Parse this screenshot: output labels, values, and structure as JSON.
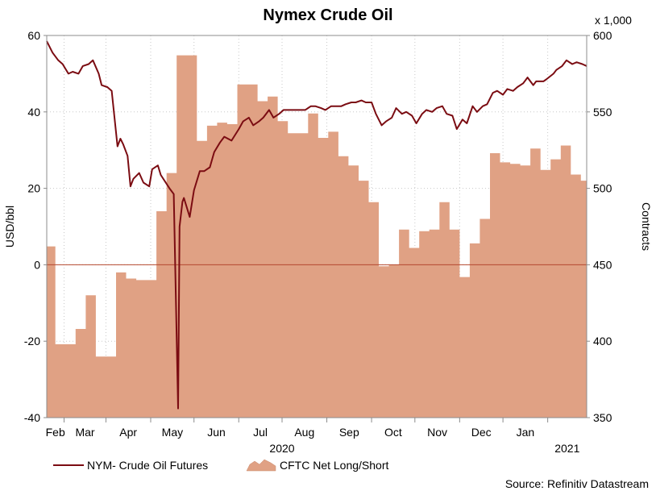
{
  "chart_data": {
    "type": "line+area",
    "title": "Nymex Crude Oil",
    "source": "Source: Refinitiv Datastream",
    "left_axis": {
      "label": "USD/bbl",
      "range": [
        -40,
        60
      ],
      "ticks": [
        "60",
        "40",
        "20",
        "0",
        "-20",
        "-40"
      ],
      "tick_values": [
        60,
        40,
        20,
        0,
        -20,
        -40
      ]
    },
    "right_axis": {
      "label": "Contracts",
      "multiplier": "x 1,000",
      "range": [
        350,
        600
      ],
      "ticks": [
        "600",
        "550",
        "500",
        "450",
        "400",
        "350"
      ],
      "tick_values": [
        600,
        550,
        500,
        450,
        400,
        350
      ]
    },
    "x_axis": {
      "month_labels": [
        "Feb",
        "Mar",
        "Apr",
        "May",
        "Jun",
        "Jul",
        "Aug",
        "Sep",
        "Oct",
        "Nov",
        "Dec",
        "Jan"
      ],
      "year_labels": [
        "2020",
        "2021"
      ],
      "range": [
        "2020-01-20",
        "2021-01-28"
      ]
    },
    "grid": true,
    "legend": {
      "position": "bottom-left",
      "items": [
        "NYM- Crude Oil Futures",
        "CFTC Net Long/Short"
      ]
    },
    "colors": {
      "line": "#7b0c12",
      "area": "#e0a184",
      "zero_line": "#b5482f"
    },
    "series": [
      {
        "name": "NYM- Crude Oil Futures",
        "axis": "left",
        "unit": "USD/bbl",
        "points": [
          [
            "2020-01-20",
            58.5
          ],
          [
            "2020-01-24",
            55.5
          ],
          [
            "2020-01-28",
            53.5
          ],
          [
            "2020-01-31",
            52.5
          ],
          [
            "2020-02-04",
            50.0
          ],
          [
            "2020-02-07",
            50.5
          ],
          [
            "2020-02-11",
            50.0
          ],
          [
            "2020-02-14",
            52.0
          ],
          [
            "2020-02-18",
            52.5
          ],
          [
            "2020-02-21",
            53.5
          ],
          [
            "2020-02-25",
            50.0
          ],
          [
            "2020-02-27",
            47.0
          ],
          [
            "2020-03-02",
            46.5
          ],
          [
            "2020-03-05",
            45.5
          ],
          [
            "2020-03-09",
            31.0
          ],
          [
            "2020-03-11",
            33.0
          ],
          [
            "2020-03-13",
            31.5
          ],
          [
            "2020-03-16",
            28.5
          ],
          [
            "2020-03-18",
            20.5
          ],
          [
            "2020-03-20",
            22.5
          ],
          [
            "2020-03-24",
            24.0
          ],
          [
            "2020-03-27",
            21.5
          ],
          [
            "2020-03-31",
            20.5
          ],
          [
            "2020-04-02",
            25.0
          ],
          [
            "2020-04-06",
            26.0
          ],
          [
            "2020-04-08",
            23.5
          ],
          [
            "2020-04-14",
            20.0
          ],
          [
            "2020-04-17",
            18.5
          ],
          [
            "2020-04-20",
            -37.6
          ],
          [
            "2020-04-21",
            10.0
          ],
          [
            "2020-04-23",
            16.5
          ],
          [
            "2020-04-24",
            17.5
          ],
          [
            "2020-04-28",
            12.5
          ],
          [
            "2020-05-01",
            19.5
          ],
          [
            "2020-05-05",
            24.5
          ],
          [
            "2020-05-08",
            24.5
          ],
          [
            "2020-05-12",
            25.5
          ],
          [
            "2020-05-15",
            29.5
          ],
          [
            "2020-05-19",
            32.0
          ],
          [
            "2020-05-22",
            33.5
          ],
          [
            "2020-05-27",
            32.5
          ],
          [
            "2020-06-01",
            35.5
          ],
          [
            "2020-06-04",
            37.5
          ],
          [
            "2020-06-08",
            38.5
          ],
          [
            "2020-06-11",
            36.5
          ],
          [
            "2020-06-15",
            37.5
          ],
          [
            "2020-06-18",
            38.5
          ],
          [
            "2020-06-22",
            40.5
          ],
          [
            "2020-06-25",
            38.5
          ],
          [
            "2020-06-29",
            39.5
          ],
          [
            "2020-07-02",
            40.5
          ],
          [
            "2020-07-07",
            40.5
          ],
          [
            "2020-07-10",
            40.5
          ],
          [
            "2020-07-14",
            40.5
          ],
          [
            "2020-07-17",
            40.5
          ],
          [
            "2020-07-21",
            41.5
          ],
          [
            "2020-07-24",
            41.5
          ],
          [
            "2020-07-28",
            41.0
          ],
          [
            "2020-07-31",
            40.5
          ],
          [
            "2020-08-04",
            41.5
          ],
          [
            "2020-08-07",
            41.5
          ],
          [
            "2020-08-11",
            41.5
          ],
          [
            "2020-08-14",
            42.0
          ],
          [
            "2020-08-18",
            42.5
          ],
          [
            "2020-08-21",
            42.5
          ],
          [
            "2020-08-25",
            43.0
          ],
          [
            "2020-08-28",
            42.5
          ],
          [
            "2020-09-01",
            42.5
          ],
          [
            "2020-09-04",
            39.5
          ],
          [
            "2020-09-08",
            36.5
          ],
          [
            "2020-09-11",
            37.5
          ],
          [
            "2020-09-15",
            38.5
          ],
          [
            "2020-09-18",
            41.0
          ],
          [
            "2020-09-22",
            39.5
          ],
          [
            "2020-09-25",
            40.0
          ],
          [
            "2020-09-29",
            39.0
          ],
          [
            "2020-10-02",
            37.0
          ],
          [
            "2020-10-06",
            39.5
          ],
          [
            "2020-10-09",
            40.5
          ],
          [
            "2020-10-13",
            40.0
          ],
          [
            "2020-10-16",
            41.0
          ],
          [
            "2020-10-20",
            41.5
          ],
          [
            "2020-10-23",
            39.5
          ],
          [
            "2020-10-27",
            39.0
          ],
          [
            "2020-10-30",
            35.5
          ],
          [
            "2020-11-03",
            38.0
          ],
          [
            "2020-11-06",
            37.0
          ],
          [
            "2020-11-10",
            41.5
          ],
          [
            "2020-11-13",
            40.0
          ],
          [
            "2020-11-17",
            41.5
          ],
          [
            "2020-11-20",
            42.0
          ],
          [
            "2020-11-24",
            45.0
          ],
          [
            "2020-11-27",
            45.5
          ],
          [
            "2020-12-01",
            44.5
          ],
          [
            "2020-12-04",
            46.0
          ],
          [
            "2020-12-08",
            45.5
          ],
          [
            "2020-12-11",
            46.5
          ],
          [
            "2020-12-15",
            47.5
          ],
          [
            "2020-12-18",
            49.0
          ],
          [
            "2020-12-22",
            47.0
          ],
          [
            "2020-12-24",
            48.0
          ],
          [
            "2020-12-29",
            48.0
          ],
          [
            "2020-12-31",
            48.5
          ],
          [
            "2021-01-05",
            50.0
          ],
          [
            "2021-01-07",
            51.0
          ],
          [
            "2021-01-11",
            52.0
          ],
          [
            "2021-01-14",
            53.5
          ],
          [
            "2021-01-18",
            52.5
          ],
          [
            "2021-01-21",
            53.0
          ],
          [
            "2021-01-25",
            52.5
          ],
          [
            "2021-01-28",
            52.0
          ]
        ]
      },
      {
        "name": "CFTC Net Long/Short",
        "axis": "right",
        "unit": "Contracts (x 1,000)",
        "steps": [
          [
            "2020-01-20",
            462
          ],
          [
            "2020-01-26",
            398
          ],
          [
            "2020-02-09",
            408
          ],
          [
            "2020-02-16",
            430
          ],
          [
            "2020-02-23",
            390
          ],
          [
            "2020-03-08",
            445
          ],
          [
            "2020-03-15",
            441
          ],
          [
            "2020-03-22",
            440
          ],
          [
            "2020-04-05",
            485
          ],
          [
            "2020-04-12",
            510
          ],
          [
            "2020-04-19",
            587
          ],
          [
            "2020-05-03",
            531
          ],
          [
            "2020-05-10",
            541
          ],
          [
            "2020-05-17",
            543
          ],
          [
            "2020-05-24",
            542
          ],
          [
            "2020-05-31",
            568
          ],
          [
            "2020-06-14",
            557
          ],
          [
            "2020-06-21",
            560
          ],
          [
            "2020-06-28",
            544
          ],
          [
            "2020-07-05",
            536
          ],
          [
            "2020-07-19",
            549
          ],
          [
            "2020-07-26",
            533
          ],
          [
            "2020-08-02",
            537
          ],
          [
            "2020-08-09",
            521
          ],
          [
            "2020-08-16",
            515
          ],
          [
            "2020-08-23",
            505
          ],
          [
            "2020-08-30",
            491
          ],
          [
            "2020-09-06",
            449
          ],
          [
            "2020-09-13",
            450
          ],
          [
            "2020-09-20",
            473
          ],
          [
            "2020-09-27",
            461
          ],
          [
            "2020-10-04",
            472
          ],
          [
            "2020-10-11",
            473
          ],
          [
            "2020-10-18",
            491
          ],
          [
            "2020-10-25",
            473
          ],
          [
            "2020-11-01",
            442
          ],
          [
            "2020-11-08",
            464
          ],
          [
            "2020-11-15",
            480
          ],
          [
            "2020-11-22",
            523
          ],
          [
            "2020-11-29",
            517
          ],
          [
            "2020-12-06",
            516
          ],
          [
            "2020-12-13",
            515
          ],
          [
            "2020-12-20",
            526
          ],
          [
            "2020-12-27",
            512
          ],
          [
            "2021-01-03",
            519
          ],
          [
            "2021-01-10",
            528
          ],
          [
            "2021-01-17",
            509
          ],
          [
            "2021-01-24",
            505
          ],
          [
            "2021-01-28",
            505
          ]
        ]
      }
    ]
  }
}
